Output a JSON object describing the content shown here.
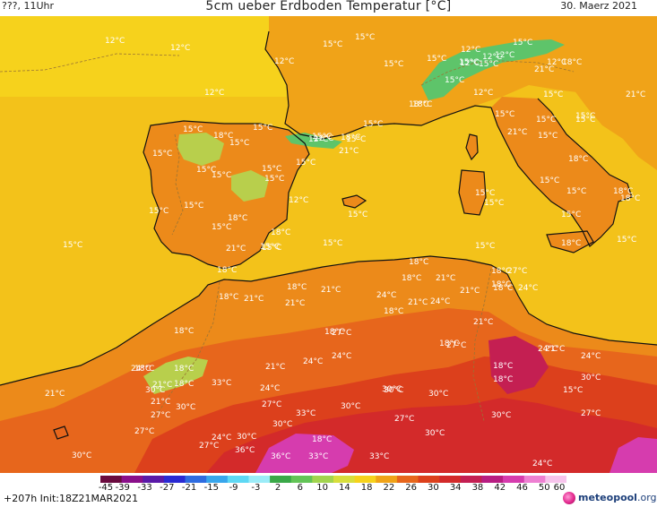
{
  "header": {
    "left": "???, 11Uhr",
    "title": "5cm ueber Erdboden Temperatur [°C]",
    "date": "30. Maerz 2021"
  },
  "map": {
    "colors": {
      "sea": "#f3c21a",
      "sea_north": "#f6d21c",
      "land_cool": "#f0a318",
      "land": "#ec8a1a",
      "land_warm": "#e7661c",
      "land_hot": "#dc401c",
      "land_hotter": "#d32a2a",
      "very_hot": "#c41f52",
      "extreme": "#d63cae",
      "cool_patch": "#b8cf4c",
      "cold_patch": "#5ec46a",
      "coast": "#111111",
      "border": "#9a7434"
    },
    "labels": [
      "12°C",
      "12°C",
      "12°C",
      "12°C",
      "15°C",
      "15°C",
      "15°C",
      "15°C",
      "12°C",
      "15°C",
      "15°C",
      "12°C",
      "15°C",
      "12°C",
      "18°C",
      "21°C",
      "21°C",
      "15°C",
      "12°C",
      "18°C",
      "15°C",
      "15°C",
      "15°C",
      "12°C",
      "15°C",
      "18°C",
      "15°C",
      "15°C",
      "15°C",
      "18°C",
      "15°C",
      "21°C",
      "18°C",
      "12°C",
      "15°C",
      "15°C",
      "15°C",
      "15°C",
      "15°C",
      "15°C",
      "21°C",
      "18°C",
      "18°C",
      "15°C",
      "15°C",
      "18°C",
      "12°C",
      "15°C",
      "12°C",
      "15°C",
      "18°C",
      "18°C",
      "15°C",
      "12°C",
      "15°C",
      "15°C",
      "15°C",
      "15°C",
      "15°C",
      "18°C",
      "15°C",
      "15°C",
      "15°C",
      "18°C",
      "18°C",
      "15°C",
      "18°C",
      "15°C",
      "21°C",
      "15°C",
      "15°C",
      "15°C",
      "18°C",
      "15°C",
      "18°C",
      "18°C",
      "21°C",
      "21°C",
      "18°C",
      "18°C",
      "21°C",
      "21°C",
      "24°C",
      "18°C",
      "21°C",
      "21°C",
      "24°C",
      "27°C",
      "24°C",
      "21°C",
      "18°C",
      "27°C",
      "18°C",
      "18°C",
      "30°C",
      "27°C",
      "24°C",
      "24°C",
      "21°C",
      "24°C",
      "21°C",
      "18°C",
      "18°C",
      "24°C",
      "18°C",
      "21°C",
      "18°C",
      "33°C",
      "24°C",
      "21°C",
      "18°C",
      "30°C",
      "15°C",
      "27°C",
      "30°C",
      "30°C",
      "30°C",
      "24°C",
      "21°C",
      "30°C",
      "27°C",
      "27°C",
      "30°C",
      "30°C",
      "27°C",
      "24°C",
      "27°C",
      "30°C",
      "33°C",
      "30°C",
      "30°C",
      "27°C",
      "36°C",
      "36°C",
      "33°C",
      "18°C",
      "30°C",
      "24°C",
      "33°C"
    ]
  },
  "scale": {
    "ticks": [
      "-45",
      "-39",
      "-33",
      "-27",
      "-21",
      "-15",
      "-9",
      "-3",
      "2",
      "6",
      "10",
      "14",
      "18",
      "22",
      "26",
      "30",
      "34",
      "38",
      "42",
      "46",
      "50",
      "60"
    ],
    "colors": [
      "#6a0a3e",
      "#8a0f8a",
      "#5a1aa8",
      "#2a2ad2",
      "#2f6ce0",
      "#38a6ec",
      "#5ed8f4",
      "#9cecf8",
      "#3aa848",
      "#63c457",
      "#a2d44e",
      "#d8de3c",
      "#f6d21c",
      "#f0a318",
      "#e7661c",
      "#dc401c",
      "#d32a2a",
      "#c41f52",
      "#b81e82",
      "#d63cae",
      "#ee80d2",
      "#f7c4ec"
    ]
  },
  "footer": {
    "run": "+207h  Init:18Z21MAR2021",
    "brand_name": "meteopool",
    "brand_tld": ".org"
  }
}
